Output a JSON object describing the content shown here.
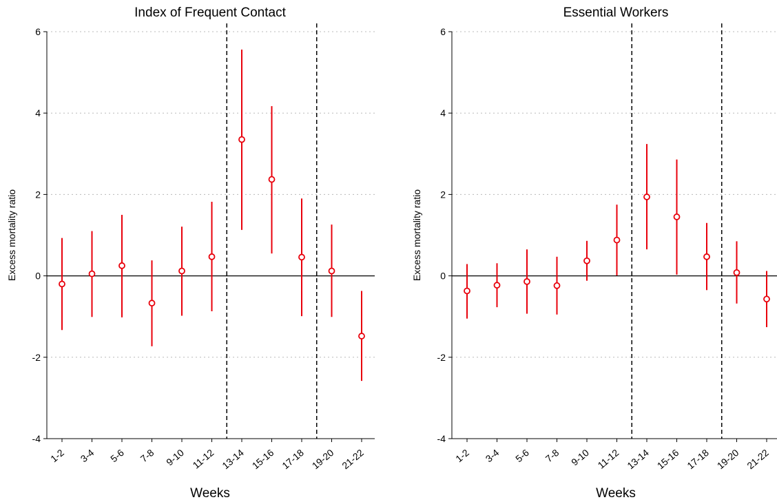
{
  "chart_data": [
    {
      "type": "scatter",
      "title": "Index of Frequent Contact",
      "xlabel": "Weeks",
      "ylabel": "Excess mortality ratio",
      "categories": [
        "1-2",
        "3-4",
        "5-6",
        "7-8",
        "9-10",
        "11-12",
        "13-14",
        "15-16",
        "17-18",
        "19-20",
        "21-22"
      ],
      "values": [
        -0.2,
        0.05,
        0.25,
        -0.67,
        0.12,
        0.47,
        3.35,
        2.37,
        0.46,
        0.12,
        -1.48
      ],
      "ci_low": [
        -1.33,
        -1.01,
        -1.02,
        -1.73,
        -0.98,
        -0.87,
        1.13,
        0.55,
        -0.99,
        -1.01,
        -2.58
      ],
      "ci_high": [
        0.93,
        1.1,
        1.5,
        0.38,
        1.21,
        1.82,
        5.56,
        4.17,
        1.9,
        1.26,
        -0.37
      ],
      "ylim": [
        -4,
        6
      ],
      "yticks": [
        "-4",
        "-2",
        "0",
        "2",
        "4",
        "6"
      ],
      "reference_lines_after": [
        "11-12",
        "17-18"
      ],
      "grid": true,
      "color": "#e8000b"
    },
    {
      "type": "scatter",
      "title": "Essential Workers",
      "xlabel": "Weeks",
      "ylabel": "Excess mortality ratio",
      "categories": [
        "1-2",
        "3-4",
        "5-6",
        "7-8",
        "9-10",
        "11-12",
        "13-14",
        "15-16",
        "17-18",
        "19-20",
        "21-22"
      ],
      "values": [
        -0.37,
        -0.23,
        -0.14,
        -0.24,
        0.37,
        0.88,
        1.94,
        1.45,
        0.47,
        0.08,
        -0.57
      ],
      "ci_low": [
        -1.05,
        -0.77,
        -0.93,
        -0.95,
        -0.12,
        0.01,
        0.65,
        0.03,
        -0.35,
        -0.68,
        -1.26
      ],
      "ci_high": [
        0.29,
        0.31,
        0.65,
        0.47,
        0.86,
        1.75,
        3.24,
        2.86,
        1.3,
        0.85,
        0.12
      ],
      "ylim": [
        -4,
        6
      ],
      "yticks": [
        "-4",
        "-2",
        "0",
        "2",
        "4",
        "6"
      ],
      "reference_lines_after": [
        "11-12",
        "17-18"
      ],
      "grid": true,
      "color": "#e8000b"
    }
  ]
}
